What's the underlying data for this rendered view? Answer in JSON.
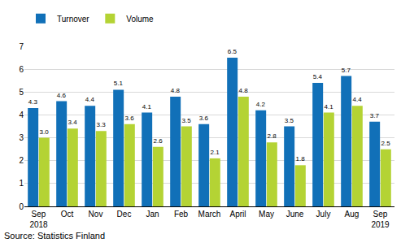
{
  "chart_data": {
    "type": "bar",
    "categories": [
      "Sep\n2018",
      "Oct",
      "Nov",
      "Dec",
      "Jan",
      "Feb",
      "March",
      "April",
      "May",
      "June",
      "July",
      "Aug",
      "Sep\n2019"
    ],
    "series": [
      {
        "name": "Turnover",
        "color": "#1170b8",
        "values": [
          4.3,
          4.6,
          4.4,
          5.1,
          4.1,
          4.8,
          3.6,
          6.5,
          4.2,
          3.5,
          5.4,
          5.7,
          3.7
        ],
        "value_labels": [
          "4.3",
          "4.6",
          "4.4",
          "5.1",
          "4.1",
          "4.8",
          "3.6",
          "6.5",
          "4.2",
          "3.5",
          "5.4",
          "5.7",
          "3.7"
        ]
      },
      {
        "name": "Volume",
        "color": "#b4d334",
        "values": [
          3.0,
          3.4,
          3.3,
          3.6,
          2.6,
          3.5,
          2.1,
          4.8,
          2.8,
          1.8,
          4.1,
          4.4,
          2.5
        ],
        "value_labels": [
          "3.0",
          "3.4",
          "3.3",
          "3.6",
          "2.6",
          "3.5",
          "2.1",
          "4.8",
          "2.8",
          "1.8",
          "4.1",
          "4.4",
          "2.5"
        ]
      }
    ],
    "ylim": [
      0,
      7
    ],
    "yticks": [
      0,
      1,
      2,
      3,
      4,
      5,
      6,
      7
    ],
    "grid": true,
    "legend": "top-left",
    "data_labels": true,
    "source": "Source: Statistics Finland"
  }
}
